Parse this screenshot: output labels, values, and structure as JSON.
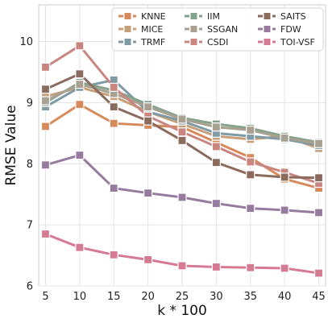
{
  "chart_data": {
    "type": "line",
    "title": "",
    "xlabel": "k * 100",
    "ylabel": "RMSE Value",
    "x": [
      5,
      10,
      15,
      20,
      25,
      30,
      35,
      40,
      45
    ],
    "x_tick_labels": [
      "5",
      "10",
      "15",
      "20",
      "25",
      "30",
      "35",
      "40",
      "45"
    ],
    "y_ticks": [
      6,
      7,
      8,
      9,
      10
    ],
    "y_tick_labels": [
      "6",
      "7",
      "8",
      "9",
      "10"
    ],
    "xlim": [
      4.0,
      46.0
    ],
    "ylim": [
      6.0,
      10.6
    ],
    "grid": true,
    "legend_position": "top-right",
    "legend_columns": 3,
    "series": [
      {
        "name": "KNNE",
        "color": "#d68a5c",
        "values": [
          8.61,
          8.97,
          8.66,
          8.63,
          8.6,
          8.35,
          8.1,
          7.75,
          7.6
        ]
      },
      {
        "name": "MICE",
        "color": "#c6a07a",
        "values": [
          9.1,
          9.25,
          9.1,
          8.85,
          8.65,
          8.45,
          8.4,
          8.45,
          8.25
        ]
      },
      {
        "name": "TRMF",
        "color": "#7f9aa5",
        "values": [
          8.93,
          9.25,
          9.37,
          8.85,
          8.7,
          8.5,
          8.45,
          8.4,
          8.3
        ]
      },
      {
        "name": "IIM",
        "color": "#84a38c",
        "values": [
          9.0,
          9.33,
          9.2,
          8.97,
          8.75,
          8.65,
          8.58,
          8.45,
          8.35
        ]
      },
      {
        "name": "SSGAN",
        "color": "#a8a090",
        "values": [
          9.03,
          9.3,
          9.15,
          8.93,
          8.73,
          8.6,
          8.55,
          8.42,
          8.33
        ]
      },
      {
        "name": "CSDI",
        "color": "#c98580",
        "values": [
          9.58,
          9.93,
          9.25,
          8.78,
          8.52,
          8.28,
          8.03,
          7.86,
          7.68
        ]
      },
      {
        "name": "SAITS",
        "color": "#8b6b5e",
        "values": [
          9.22,
          9.47,
          8.93,
          8.7,
          8.38,
          8.02,
          7.82,
          7.78,
          7.77
        ]
      },
      {
        "name": "FDW",
        "color": "#977b9e",
        "values": [
          7.98,
          8.14,
          7.6,
          7.52,
          7.45,
          7.35,
          7.27,
          7.24,
          7.2
        ]
      },
      {
        "name": "TOI-VSF",
        "color": "#d67a94",
        "values": [
          6.85,
          6.63,
          6.51,
          6.43,
          6.33,
          6.31,
          6.3,
          6.29,
          6.21
        ]
      }
    ]
  }
}
